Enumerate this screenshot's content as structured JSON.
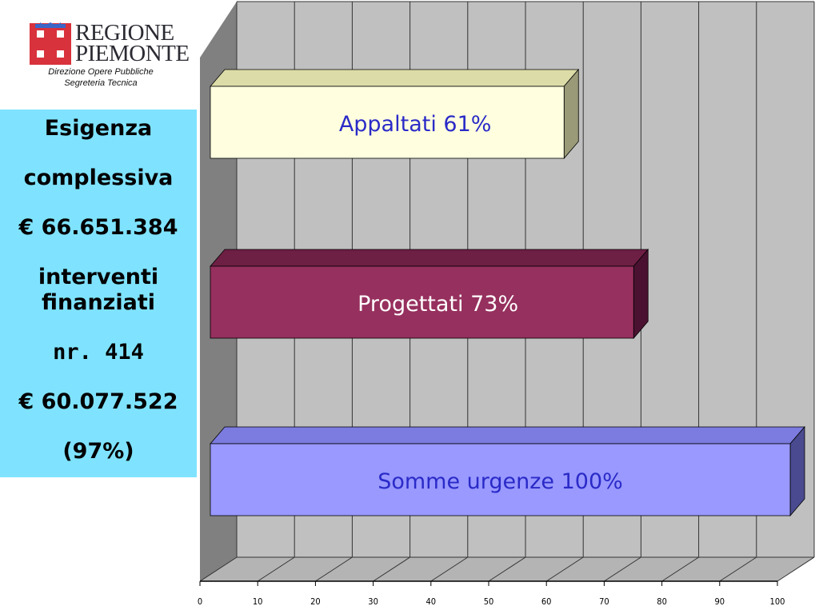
{
  "header": {
    "logo_line1": "REGIONE",
    "logo_line2": "PIEMONTE",
    "dept_line1": "Direzione Opere Pubbliche",
    "dept_line2": "Segreteria Tecnica"
  },
  "infobox": {
    "line1": "Esigenza",
    "line2": "complessiva",
    "line3": "€ 66.651.384",
    "line4a": "interventi",
    "line4b": "finanziati",
    "line5": "nr. 414",
    "line6": "€ 60.077.522",
    "line7": "(97%)"
  },
  "colors": {
    "panel_bg": "#c0c0c0",
    "infobox_bg": "#7fe3ff",
    "label_blue": "#2a2ac8"
  },
  "chart_data": {
    "type": "bar",
    "orientation": "horizontal",
    "style": "3d",
    "xlim": [
      0,
      100
    ],
    "ticks": [
      0,
      10,
      20,
      30,
      40,
      50,
      60,
      70,
      80,
      90,
      100
    ],
    "grid": true,
    "bars": [
      {
        "label": "Appaltati 61%",
        "value": 61,
        "face": "#ffffe0",
        "top": "#dcdca8",
        "side": "#9a9a78",
        "text_color": "#2a2ac8"
      },
      {
        "label": "Progettati 73%",
        "value": 73,
        "face": "#96305e",
        "top": "#6e1f44",
        "side": "#4a1230",
        "text_color": "#ffffff"
      },
      {
        "label": "Somme urgenze 100%",
        "value": 100,
        "face": "#9999ff",
        "top": "#7b7be0",
        "side": "#4a4a90",
        "text_color": "#2a2ac8"
      }
    ]
  }
}
